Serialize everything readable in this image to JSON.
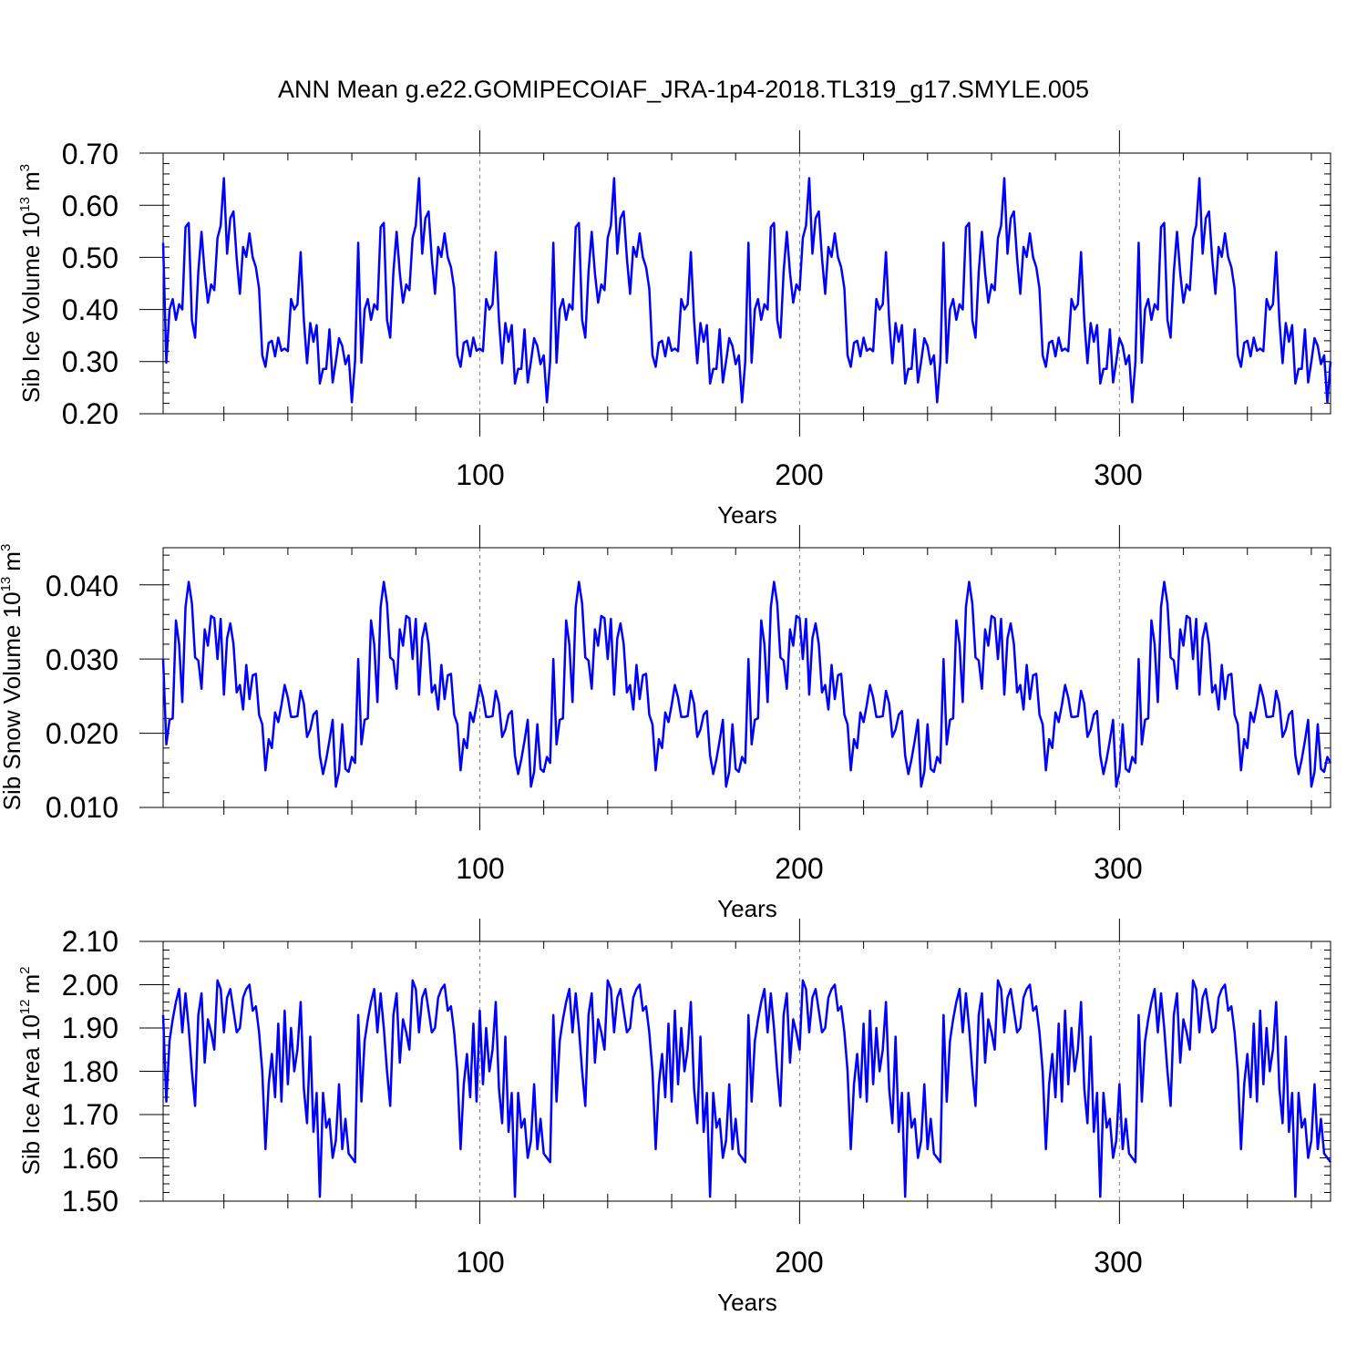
{
  "title": "ANN Mean g.e22.GOMIPECOIAF_JRA-1p4-2018.TL319_g17.SMYLE.005",
  "line_color": "#0000ff",
  "chart_data": [
    {
      "type": "line",
      "name": "ice-volume",
      "ylabel": {
        "main": "Sib Ice Volume 10",
        "exp": "13",
        "unit": "m",
        "unit_exp": "3"
      },
      "xlabel": "Years",
      "xlim": [
        1,
        366
      ],
      "ylim": [
        0.2,
        0.7
      ],
      "x_ticks": [
        100,
        200,
        300
      ],
      "x_tick_labels": [
        "100",
        "200",
        "300"
      ],
      "y_ticks": [
        0.2,
        0.3,
        0.4,
        0.5,
        0.6,
        0.7
      ],
      "y_tick_labels": [
        "0.20",
        "0.30",
        "0.40",
        "0.50",
        "0.60",
        "0.70"
      ],
      "y_minor": 0.02,
      "period_start": 61,
      "period_length": 61,
      "first_years": [
        0.528,
        0.298,
        0.4,
        0.42,
        0.38,
        0.41,
        0.4,
        0.558,
        0.566,
        0.38,
        0.346,
        0.472,
        0.549,
        0.47,
        0.413,
        0.448,
        0.437,
        0.537,
        0.561,
        0.652,
        0.507,
        0.575,
        0.588,
        0.498,
        0.43,
        0.52,
        0.501,
        0.546,
        0.5,
        0.481,
        0.44,
        0.312,
        0.29,
        0.336,
        0.34,
        0.31,
        0.346,
        0.321,
        0.325,
        0.32,
        0.42,
        0.4,
        0.41,
        0.51,
        0.38,
        0.297,
        0.374,
        0.338,
        0.37,
        0.258,
        0.286,
        0.286,
        0.362,
        0.26,
        0.3,
        0.345,
        0.33,
        0.295,
        0.312,
        0.222,
        0.3
      ],
      "series": [
        {
          "name": "Sib Ice Volume",
          "values": [
            0.528,
            0.298,
            0.4,
            0.42,
            0.38,
            0.41,
            0.4,
            0.558,
            0.566,
            0.38,
            0.346,
            0.472,
            0.549,
            0.47,
            0.413,
            0.448,
            0.437,
            0.537,
            0.561,
            0.652,
            0.507,
            0.575,
            0.588,
            0.498,
            0.43,
            0.52,
            0.501,
            0.546,
            0.5,
            0.481,
            0.44,
            0.312,
            0.29,
            0.336,
            0.34,
            0.31,
            0.346,
            0.321,
            0.325,
            0.32,
            0.42,
            0.4,
            0.41,
            0.51,
            0.38,
            0.297,
            0.374,
            0.338,
            0.37,
            0.258,
            0.286,
            0.286,
            0.362,
            0.26,
            0.3,
            0.345,
            0.33,
            0.295,
            0.312,
            0.222,
            0.3
          ]
        }
      ]
    },
    {
      "type": "line",
      "name": "snow-volume",
      "ylabel": {
        "main": "Sib Snow Volume 10",
        "exp": "13",
        "unit": "m",
        "unit_exp": "3"
      },
      "xlabel": "Years",
      "xlim": [
        1,
        366
      ],
      "ylim": [
        0.01,
        0.045
      ],
      "x_ticks": [
        100,
        200,
        300
      ],
      "x_tick_labels": [
        "100",
        "200",
        "300"
      ],
      "y_ticks": [
        0.01,
        0.02,
        0.03,
        0.04
      ],
      "y_tick_labels": [
        "0.010",
        "0.020",
        "0.030",
        "0.040"
      ],
      "y_minor": 0.002,
      "period_start": 61,
      "period_length": 61,
      "first_years": [
        0.03,
        0.0185,
        0.0218,
        0.022,
        0.0352,
        0.032,
        0.0242,
        0.037,
        0.0404,
        0.0375,
        0.0302,
        0.0298,
        0.026,
        0.034,
        0.0318,
        0.0358,
        0.0355,
        0.03,
        0.0354,
        0.0252,
        0.0328,
        0.0348,
        0.032,
        0.0255,
        0.0265,
        0.0232,
        0.0292,
        0.0246,
        0.0278,
        0.028,
        0.0225,
        0.0212,
        0.015,
        0.0192,
        0.018,
        0.0228,
        0.0215,
        0.0238,
        0.0265,
        0.0248,
        0.0222,
        0.0222,
        0.0223,
        0.0257,
        0.024,
        0.0195,
        0.0205,
        0.0225,
        0.023,
        0.017,
        0.0145,
        0.0165,
        0.019,
        0.0218,
        0.0128,
        0.0148,
        0.0212,
        0.0152,
        0.0148,
        0.0168,
        0.016
      ],
      "series": [
        {
          "name": "Sib Snow Volume",
          "values": [
            0.03,
            0.0185,
            0.0218,
            0.022,
            0.0352,
            0.032,
            0.0242,
            0.037,
            0.0404,
            0.0375,
            0.0302,
            0.0298,
            0.026,
            0.034,
            0.0318,
            0.0358,
            0.0355,
            0.03,
            0.0354,
            0.0252,
            0.0328,
            0.0348,
            0.032,
            0.0255,
            0.0265,
            0.0232,
            0.0292,
            0.0246,
            0.0278,
            0.028,
            0.0225,
            0.0212,
            0.015,
            0.0192,
            0.018,
            0.0228,
            0.0215,
            0.0238,
            0.0265,
            0.0248,
            0.0222,
            0.0222,
            0.0223,
            0.0257,
            0.024,
            0.0195,
            0.0205,
            0.0225,
            0.023,
            0.017,
            0.0145,
            0.0165,
            0.019,
            0.0218,
            0.0128,
            0.0148,
            0.0212,
            0.0152,
            0.0148,
            0.0168,
            0.016
          ]
        }
      ]
    },
    {
      "type": "line",
      "name": "ice-area",
      "ylabel": {
        "main": "Sib Ice Area 10",
        "exp": "12",
        "unit": "m",
        "unit_exp": "2"
      },
      "xlabel": "Years",
      "xlim": [
        1,
        366
      ],
      "ylim": [
        1.5,
        2.1
      ],
      "x_ticks": [
        100,
        200,
        300
      ],
      "x_tick_labels": [
        "100",
        "200",
        "300"
      ],
      "y_ticks": [
        1.5,
        1.6,
        1.7,
        1.8,
        1.9,
        2.0,
        2.1
      ],
      "y_tick_labels": [
        "1.50",
        "1.60",
        "1.70",
        "1.80",
        "1.90",
        "2.00",
        "2.10"
      ],
      "y_minor": 0.02,
      "period_start": 61,
      "period_length": 61,
      "first_years": [
        1.93,
        1.73,
        1.87,
        1.92,
        1.96,
        1.99,
        1.89,
        1.98,
        1.9,
        1.8,
        1.72,
        1.93,
        1.98,
        1.82,
        1.92,
        1.89,
        1.85,
        2.01,
        1.99,
        1.89,
        1.97,
        1.99,
        1.94,
        1.89,
        1.9,
        1.97,
        1.99,
        2.0,
        1.94,
        1.95,
        1.89,
        1.8,
        1.62,
        1.77,
        1.84,
        1.74,
        1.91,
        1.73,
        1.94,
        1.77,
        1.9,
        1.8,
        1.85,
        1.96,
        1.76,
        1.68,
        1.88,
        1.66,
        1.75,
        1.51,
        1.75,
        1.67,
        1.69,
        1.6,
        1.64,
        1.77,
        1.62,
        1.69,
        1.61,
        1.6,
        1.59
      ],
      "series": [
        {
          "name": "Sib Ice Area",
          "values": [
            1.93,
            1.73,
            1.87,
            1.92,
            1.96,
            1.99,
            1.89,
            1.98,
            1.9,
            1.8,
            1.72,
            1.93,
            1.98,
            1.82,
            1.92,
            1.89,
            1.85,
            2.01,
            1.99,
            1.89,
            1.97,
            1.99,
            1.94,
            1.89,
            1.9,
            1.97,
            1.99,
            2.0,
            1.94,
            1.95,
            1.89,
            1.8,
            1.62,
            1.77,
            1.84,
            1.74,
            1.91,
            1.73,
            1.94,
            1.77,
            1.9,
            1.8,
            1.85,
            1.96,
            1.76,
            1.68,
            1.88,
            1.66,
            1.75,
            1.51,
            1.75,
            1.67,
            1.69,
            1.6,
            1.64,
            1.77,
            1.62,
            1.69,
            1.61,
            1.6,
            1.59
          ]
        }
      ]
    }
  ]
}
